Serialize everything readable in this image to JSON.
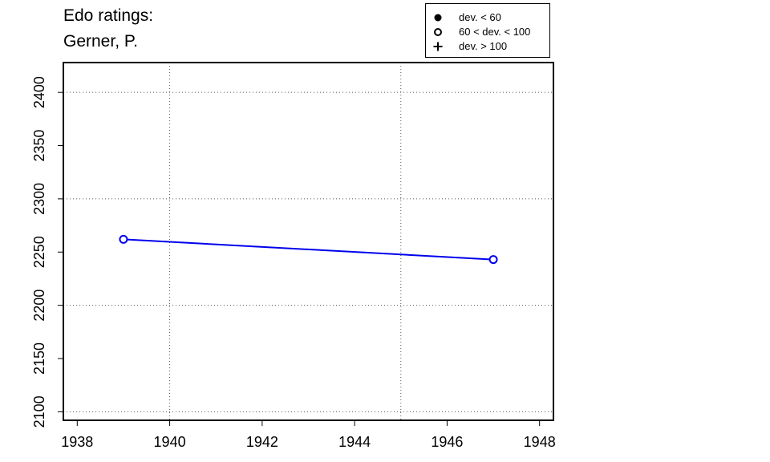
{
  "title": {
    "line1": "Edo ratings:",
    "line2": "Gerner, P."
  },
  "legend": {
    "items": [
      {
        "label": "dev. < 60",
        "symbol": "filled-circle-icon"
      },
      {
        "label": "60 < dev. < 100",
        "symbol": "open-circle-icon"
      },
      {
        "label": "dev. > 100",
        "symbol": "plus-icon"
      }
    ]
  },
  "colors": {
    "series": "#0000ee",
    "axis": "#000000",
    "grid": "#555555"
  },
  "chart_data": {
    "type": "line",
    "title": "Edo ratings: Gerner, P.",
    "xlabel": "",
    "ylabel": "",
    "xlim": [
      1937.7,
      1948.3
    ],
    "ylim": [
      2092,
      2428
    ],
    "xticks": [
      1938,
      1940,
      1942,
      1944,
      1946,
      1948
    ],
    "yticks": [
      2100,
      2150,
      2200,
      2250,
      2300,
      2350,
      2400
    ],
    "grid_x": [
      1940,
      1945
    ],
    "grid_y": [
      2100,
      2200,
      2300,
      2400
    ],
    "series": [
      {
        "x": [
          1939,
          1947
        ],
        "y": [
          2262,
          2243
        ],
        "marker": "open-circle",
        "color": "#0000ee"
      }
    ]
  }
}
